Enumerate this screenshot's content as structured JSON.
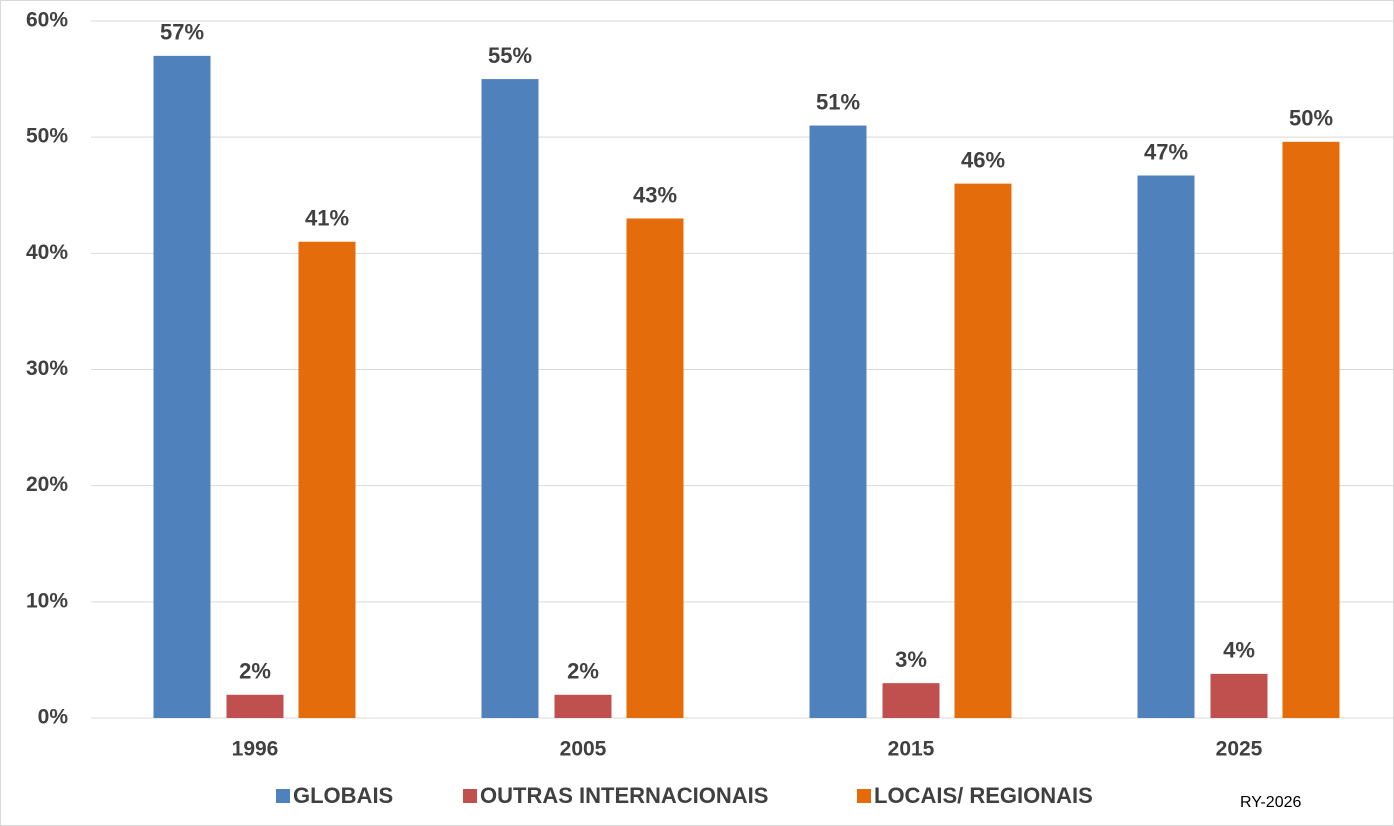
{
  "chart_data": {
    "type": "bar",
    "categories": [
      "1996",
      "2005",
      "2015",
      "2025"
    ],
    "series": [
      {
        "name": "GLOBAIS",
        "color": "#4f81bd",
        "values": [
          57,
          55,
          51,
          46.7
        ],
        "value_labels": [
          "57%",
          "55%",
          "51%",
          "47%"
        ]
      },
      {
        "name": "OUTRAS INTERNACIONAIS",
        "color": "#c0504d",
        "values": [
          2,
          2,
          3,
          3.8
        ],
        "value_labels": [
          "2%",
          "2%",
          "3%",
          "4%"
        ]
      },
      {
        "name": "LOCAIS/ REGIONAIS",
        "color": "#e46c0a",
        "values": [
          41,
          43,
          46,
          49.6
        ],
        "value_labels": [
          "41%",
          "43%",
          "46%",
          "50%"
        ]
      }
    ],
    "ylim": [
      0,
      60
    ],
    "yticks": [
      {
        "value": 0,
        "label": "0%"
      },
      {
        "value": 10,
        "label": "10%"
      },
      {
        "value": 20,
        "label": "20%"
      },
      {
        "value": 30,
        "label": "30%"
      },
      {
        "value": 40,
        "label": "40%"
      },
      {
        "value": 50,
        "label": "50%"
      },
      {
        "value": 60,
        "label": "60%"
      }
    ],
    "grid": true,
    "legend": "bottom",
    "annotation": "RY-2026"
  }
}
